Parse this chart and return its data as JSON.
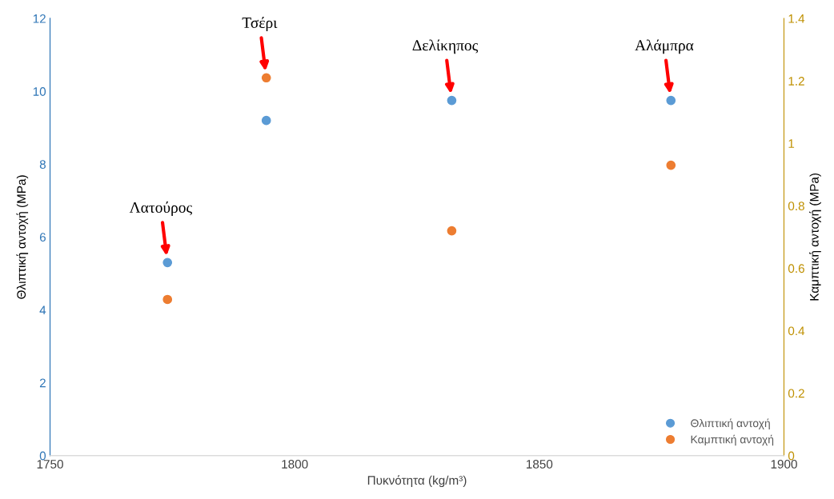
{
  "chart_data": {
    "type": "scatter",
    "xlabel": "Πυκνότητα (kg/m³)",
    "ylabel": "Θλιπτική αντοχή (MPa)",
    "y2label": "Καμπτική αντοχή (MPa)",
    "x": [
      1774,
      1794.2,
      1832.1,
      1876.9
    ],
    "series": [
      {
        "name": "Θλιπτική αντοχή",
        "color": "#5b9bd5",
        "values": [
          5.3,
          9.2,
          9.75,
          9.75
        ]
      },
      {
        "name": "Καμπτική αντοχή",
        "color": "#ed7d31",
        "values": [
          0.5,
          1.21,
          0.72,
          0.93
        ],
        "axis": "y2"
      }
    ],
    "xlim": [
      1750,
      1900
    ],
    "xticks": [
      1750,
      1800,
      1850,
      1900
    ],
    "ylim": [
      0,
      12
    ],
    "yticks": [
      0,
      2,
      4,
      6,
      8,
      10,
      12
    ],
    "y2lim": [
      0,
      1.4
    ],
    "y2ticks": [
      0,
      0.2,
      0.4,
      0.6,
      0.8,
      1,
      1.2,
      1.4
    ],
    "marker": "circle",
    "grid": false,
    "legend": "bottom right",
    "annotations": [
      "Λατούρος",
      "Τσέρι",
      "Δελίκηπος",
      "Αλάμπρα"
    ]
  }
}
